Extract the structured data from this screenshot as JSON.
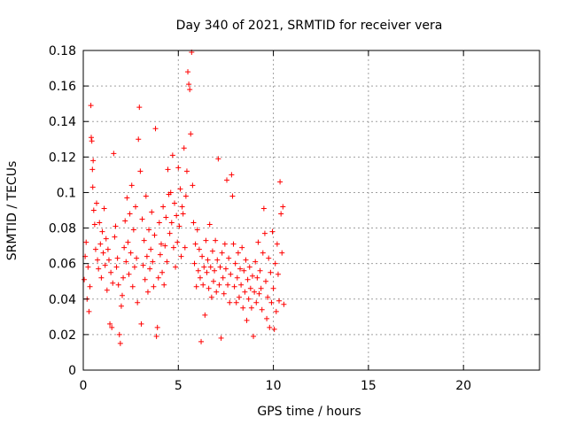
{
  "chart_data": {
    "type": "scatter",
    "title": "Day 340 of 2021, SRMTID for receiver vera",
    "xlabel": "GPS time / hours",
    "ylabel": "SRMTID / TECUs",
    "xlim": [
      0,
      24
    ],
    "ylim": [
      0,
      0.18
    ],
    "x_ticks": [
      0,
      5,
      10,
      15,
      20
    ],
    "x_tick_labels": [
      "0",
      "5",
      "10",
      "15",
      "20"
    ],
    "y_ticks": [
      0,
      0.02,
      0.04,
      0.06,
      0.08,
      0.1,
      0.12,
      0.14,
      0.16,
      0.18
    ],
    "y_tick_labels": [
      "0",
      "0.02",
      "0.04",
      "0.06",
      "0.08",
      "0.1",
      "0.12",
      "0.14",
      "0.16",
      "0.18"
    ],
    "grid": true,
    "marker": "+",
    "color": "#ff0000",
    "x_range_of_points": [
      0.0,
      10.55
    ],
    "series": [
      {
        "name": "SRMTID",
        "points": [
          [
            0.05,
            0.051
          ],
          [
            0.1,
            0.064
          ],
          [
            0.15,
            0.072
          ],
          [
            0.2,
            0.04
          ],
          [
            0.25,
            0.058
          ],
          [
            0.3,
            0.033
          ],
          [
            0.35,
            0.047
          ],
          [
            0.4,
            0.149
          ],
          [
            0.42,
            0.131
          ],
          [
            0.45,
            0.129
          ],
          [
            0.48,
            0.113
          ],
          [
            0.5,
            0.103
          ],
          [
            0.52,
            0.118
          ],
          [
            0.55,
            0.09
          ],
          [
            0.6,
            0.082
          ],
          [
            0.65,
            0.068
          ],
          [
            0.7,
            0.094
          ],
          [
            0.75,
            0.062
          ],
          [
            0.8,
            0.057
          ],
          [
            0.85,
            0.083
          ],
          [
            0.9,
            0.071
          ],
          [
            0.95,
            0.052
          ],
          [
            1.0,
            0.078
          ],
          [
            1.05,
            0.066
          ],
          [
            1.1,
            0.091
          ],
          [
            1.15,
            0.059
          ],
          [
            1.2,
            0.074
          ],
          [
            1.25,
            0.045
          ],
          [
            1.3,
            0.068
          ],
          [
            1.35,
            0.062
          ],
          [
            1.4,
            0.026
          ],
          [
            1.45,
            0.055
          ],
          [
            1.5,
            0.024
          ],
          [
            1.55,
            0.049
          ],
          [
            1.6,
            0.122
          ],
          [
            1.65,
            0.075
          ],
          [
            1.7,
            0.081
          ],
          [
            1.75,
            0.058
          ],
          [
            1.8,
            0.063
          ],
          [
            1.85,
            0.048
          ],
          [
            1.9,
            0.02
          ],
          [
            1.95,
            0.015
          ],
          [
            2.0,
            0.036
          ],
          [
            2.05,
            0.042
          ],
          [
            2.1,
            0.052
          ],
          [
            2.15,
            0.069
          ],
          [
            2.2,
            0.084
          ],
          [
            2.25,
            0.061
          ],
          [
            2.3,
            0.097
          ],
          [
            2.35,
            0.072
          ],
          [
            2.4,
            0.054
          ],
          [
            2.45,
            0.088
          ],
          [
            2.5,
            0.066
          ],
          [
            2.55,
            0.104
          ],
          [
            2.6,
            0.047
          ],
          [
            2.65,
            0.079
          ],
          [
            2.7,
            0.058
          ],
          [
            2.75,
            0.092
          ],
          [
            2.8,
            0.063
          ],
          [
            2.85,
            0.038
          ],
          [
            2.9,
            0.13
          ],
          [
            2.95,
            0.148
          ],
          [
            3.0,
            0.112
          ],
          [
            3.05,
            0.026
          ],
          [
            3.1,
            0.085
          ],
          [
            3.15,
            0.059
          ],
          [
            3.2,
            0.073
          ],
          [
            3.25,
            0.051
          ],
          [
            3.3,
            0.098
          ],
          [
            3.35,
            0.064
          ],
          [
            3.4,
            0.044
          ],
          [
            3.45,
            0.079
          ],
          [
            3.5,
            0.057
          ],
          [
            3.55,
            0.068
          ],
          [
            3.6,
            0.089
          ],
          [
            3.65,
            0.061
          ],
          [
            3.7,
            0.047
          ],
          [
            3.75,
            0.076
          ],
          [
            3.8,
            0.136
          ],
          [
            3.85,
            0.019
          ],
          [
            3.9,
            0.024
          ],
          [
            3.95,
            0.052
          ],
          [
            4.0,
            0.083
          ],
          [
            4.05,
            0.065
          ],
          [
            4.1,
            0.071
          ],
          [
            4.15,
            0.055
          ],
          [
            4.2,
            0.092
          ],
          [
            4.25,
            0.048
          ],
          [
            4.3,
            0.07
          ],
          [
            4.35,
            0.086
          ],
          [
            4.4,
            0.061
          ],
          [
            4.45,
            0.113
          ],
          [
            4.5,
            0.099
          ],
          [
            4.55,
            0.077
          ],
          [
            4.6,
            0.1
          ],
          [
            4.65,
            0.083
          ],
          [
            4.7,
            0.121
          ],
          [
            4.75,
            0.069
          ],
          [
            4.8,
            0.094
          ],
          [
            4.85,
            0.058
          ],
          [
            4.9,
            0.087
          ],
          [
            4.95,
            0.072
          ],
          [
            5.0,
            0.114
          ],
          [
            5.05,
            0.081
          ],
          [
            5.1,
            0.102
          ],
          [
            5.15,
            0.064
          ],
          [
            5.2,
            0.092
          ],
          [
            5.25,
            0.088
          ],
          [
            5.3,
            0.125
          ],
          [
            5.35,
            0.069
          ],
          [
            5.4,
            0.098
          ],
          [
            5.45,
            0.112
          ],
          [
            5.5,
            0.168
          ],
          [
            5.55,
            0.161
          ],
          [
            5.6,
            0.158
          ],
          [
            5.65,
            0.133
          ],
          [
            5.7,
            0.179
          ],
          [
            5.75,
            0.104
          ],
          [
            5.8,
            0.083
          ],
          [
            5.85,
            0.06
          ],
          [
            5.9,
            0.071
          ],
          [
            5.95,
            0.047
          ],
          [
            6.0,
            0.079
          ],
          [
            6.05,
            0.056
          ],
          [
            6.1,
            0.068
          ],
          [
            6.15,
            0.052
          ],
          [
            6.2,
            0.016
          ],
          [
            6.25,
            0.064
          ],
          [
            6.3,
            0.048
          ],
          [
            6.35,
            0.058
          ],
          [
            6.4,
            0.031
          ],
          [
            6.45,
            0.073
          ],
          [
            6.5,
            0.055
          ],
          [
            6.55,
            0.062
          ],
          [
            6.6,
            0.046
          ],
          [
            6.65,
            0.082
          ],
          [
            6.7,
            0.058
          ],
          [
            6.75,
            0.041
          ],
          [
            6.8,
            0.067
          ],
          [
            6.85,
            0.05
          ],
          [
            6.9,
            0.056
          ],
          [
            6.95,
            0.073
          ],
          [
            7.0,
            0.044
          ],
          [
            7.05,
            0.062
          ],
          [
            7.1,
            0.119
          ],
          [
            7.15,
            0.048
          ],
          [
            7.2,
            0.058
          ],
          [
            7.25,
            0.018
          ],
          [
            7.3,
            0.066
          ],
          [
            7.35,
            0.052
          ],
          [
            7.4,
            0.043
          ],
          [
            7.45,
            0.071
          ],
          [
            7.5,
            0.057
          ],
          [
            7.55,
            0.107
          ],
          [
            7.6,
            0.048
          ],
          [
            7.65,
            0.063
          ],
          [
            7.7,
            0.038
          ],
          [
            7.75,
            0.054
          ],
          [
            7.8,
            0.11
          ],
          [
            7.85,
            0.098
          ],
          [
            7.9,
            0.071
          ],
          [
            7.95,
            0.047
          ],
          [
            8.0,
            0.06
          ],
          [
            8.05,
            0.038
          ],
          [
            8.1,
            0.052
          ],
          [
            8.15,
            0.066
          ],
          [
            8.2,
            0.041
          ],
          [
            8.25,
            0.057
          ],
          [
            8.3,
            0.048
          ],
          [
            8.35,
            0.069
          ],
          [
            8.4,
            0.035
          ],
          [
            8.45,
            0.056
          ],
          [
            8.5,
            0.044
          ],
          [
            8.55,
            0.062
          ],
          [
            8.6,
            0.028
          ],
          [
            8.65,
            0.051
          ],
          [
            8.7,
            0.04
          ],
          [
            8.75,
            0.058
          ],
          [
            8.8,
            0.046
          ],
          [
            8.85,
            0.035
          ],
          [
            8.9,
            0.053
          ],
          [
            8.95,
            0.019
          ],
          [
            9.0,
            0.044
          ],
          [
            9.05,
            0.061
          ],
          [
            9.1,
            0.038
          ],
          [
            9.15,
            0.052
          ],
          [
            9.2,
            0.072
          ],
          [
            9.25,
            0.043
          ],
          [
            9.3,
            0.056
          ],
          [
            9.35,
            0.046
          ],
          [
            9.4,
            0.034
          ],
          [
            9.45,
            0.066
          ],
          [
            9.5,
            0.091
          ],
          [
            9.55,
            0.077
          ],
          [
            9.6,
            0.05
          ],
          [
            9.65,
            0.029
          ],
          [
            9.7,
            0.041
          ],
          [
            9.75,
            0.063
          ],
          [
            9.8,
            0.024
          ],
          [
            9.85,
            0.055
          ],
          [
            9.9,
            0.038
          ],
          [
            9.95,
            0.078
          ],
          [
            10.0,
            0.046
          ],
          [
            10.05,
            0.023
          ],
          [
            10.1,
            0.06
          ],
          [
            10.15,
            0.033
          ],
          [
            10.2,
            0.071
          ],
          [
            10.25,
            0.054
          ],
          [
            10.3,
            0.039
          ],
          [
            10.35,
            0.106
          ],
          [
            10.4,
            0.088
          ],
          [
            10.45,
            0.066
          ],
          [
            10.5,
            0.092
          ],
          [
            10.55,
            0.037
          ]
        ]
      }
    ]
  }
}
